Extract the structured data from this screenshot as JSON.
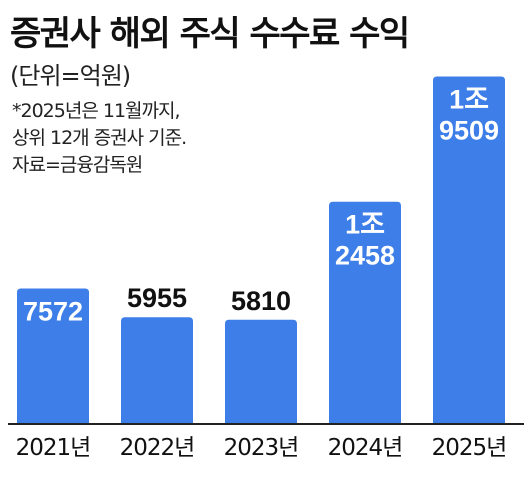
{
  "title": "증권사 해외 주식 수수료 수익",
  "subtitle": "(단위=억원)",
  "notes": [
    "*2025년은 11월까지,",
    "상위 12개 증권사 기준.",
    "자료=금융감독원"
  ],
  "colors": {
    "bar": "#3d7ee8",
    "baseline": "#222222",
    "label": "#111111"
  },
  "chart_data": {
    "type": "bar",
    "categories": [
      "2021년",
      "2022년",
      "2023년",
      "2024년",
      "2025년"
    ],
    "values": [
      7572,
      5955,
      5810,
      12458,
      19509
    ],
    "data_labels": [
      [
        "7572"
      ],
      [
        "5955"
      ],
      [
        "5810"
      ],
      [
        "1조",
        "2458"
      ],
      [
        "1조",
        "9509"
      ]
    ],
    "unit": "억원",
    "ylim": [
      0,
      21000
    ],
    "grid": false,
    "legend": "none"
  }
}
